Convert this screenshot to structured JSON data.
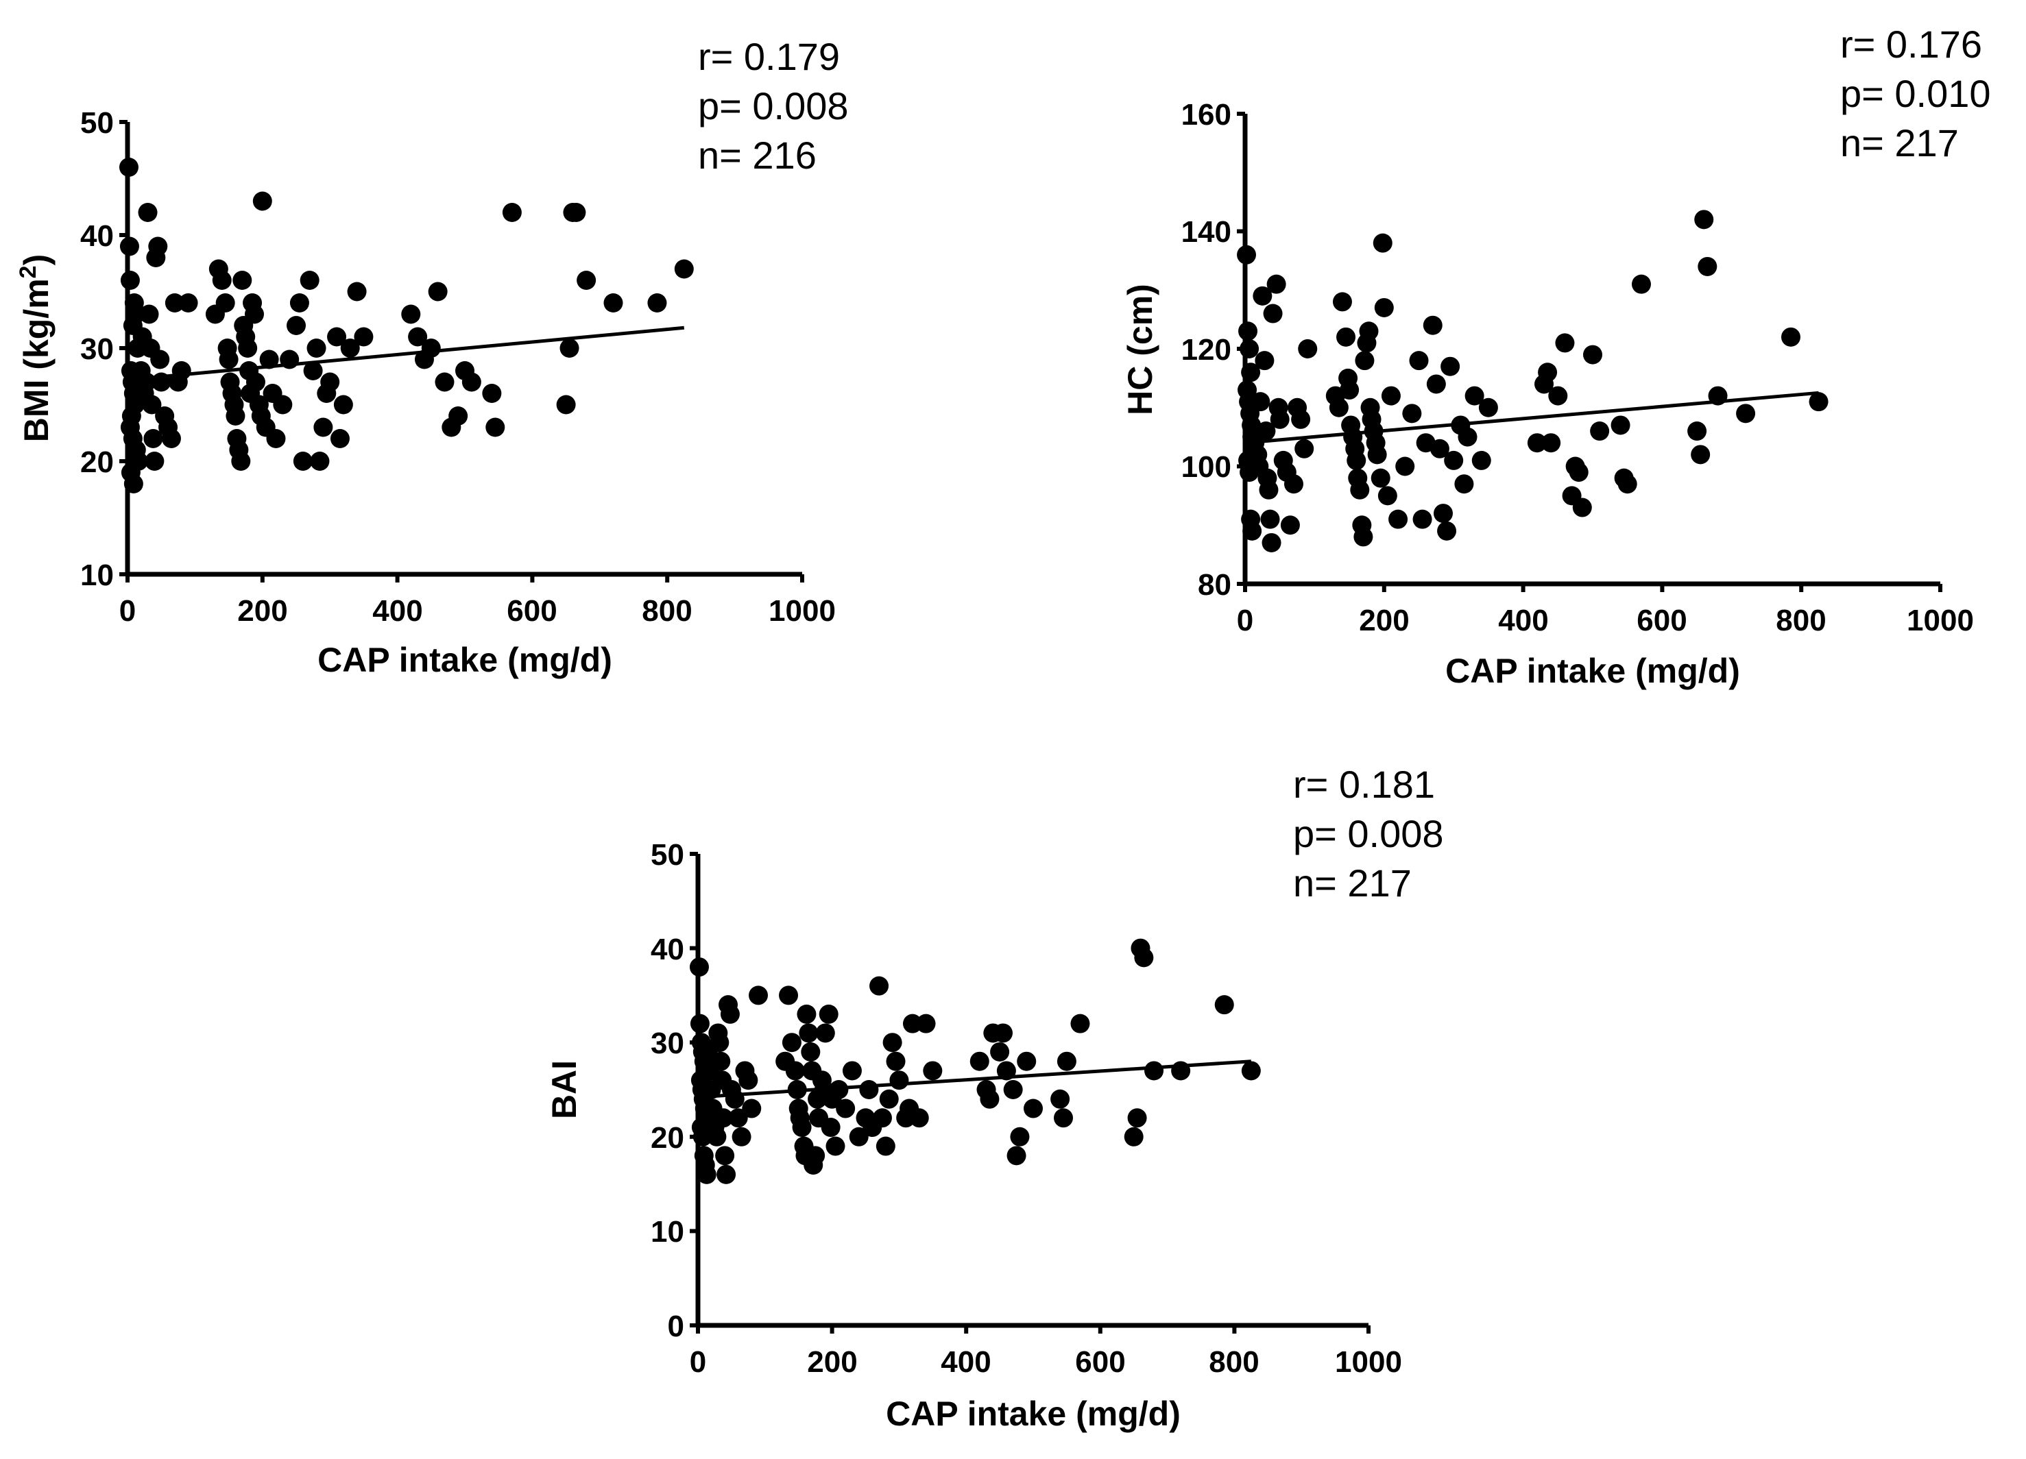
{
  "chart_data": [
    {
      "type": "scatter",
      "id": "bmi",
      "xlabel": "CAP intake (mg/d)",
      "ylabel": "BMI (kg/m",
      "ylabel_sup": "2",
      "ylabel_end": ")",
      "xlim": [
        0,
        1000
      ],
      "ylim": [
        10,
        50
      ],
      "xticks": [
        "0",
        "200",
        "400",
        "600",
        "800",
        "1000"
      ],
      "yticks": [
        "10",
        "20",
        "30",
        "40",
        "50"
      ],
      "stats": {
        "r": "r= 0.179",
        "p": "p= 0.008",
        "n": "n= 216"
      },
      "trend": {
        "x": [
          0,
          825
        ],
        "y": [
          27.2,
          31.8
        ]
      },
      "points": [
        [
          2,
          46
        ],
        [
          3,
          39
        ],
        [
          4,
          36
        ],
        [
          8,
          32
        ],
        [
          10,
          34
        ],
        [
          12,
          33
        ],
        [
          15,
          30
        ],
        [
          5,
          28
        ],
        [
          7,
          27
        ],
        [
          9,
          26
        ],
        [
          11,
          25
        ],
        [
          6,
          24
        ],
        [
          4,
          23
        ],
        [
          8,
          22
        ],
        [
          5,
          19
        ],
        [
          9,
          18
        ],
        [
          13,
          21
        ],
        [
          16,
          20
        ],
        [
          20,
          28
        ],
        [
          22,
          31
        ],
        [
          25,
          26
        ],
        [
          28,
          27
        ],
        [
          30,
          42
        ],
        [
          32,
          33
        ],
        [
          34,
          30
        ],
        [
          36,
          25
        ],
        [
          38,
          22
        ],
        [
          40,
          20
        ],
        [
          42,
          38
        ],
        [
          45,
          39
        ],
        [
          48,
          29
        ],
        [
          50,
          27
        ],
        [
          55,
          24
        ],
        [
          60,
          23
        ],
        [
          65,
          22
        ],
        [
          70,
          34
        ],
        [
          75,
          27
        ],
        [
          80,
          28
        ],
        [
          90,
          34
        ],
        [
          130,
          33
        ],
        [
          135,
          37
        ],
        [
          140,
          36
        ],
        [
          145,
          34
        ],
        [
          148,
          30
        ],
        [
          150,
          29
        ],
        [
          152,
          27
        ],
        [
          155,
          26
        ],
        [
          158,
          25
        ],
        [
          160,
          24
        ],
        [
          162,
          22
        ],
        [
          165,
          21
        ],
        [
          168,
          20
        ],
        [
          170,
          36
        ],
        [
          172,
          32
        ],
        [
          175,
          31
        ],
        [
          178,
          30
        ],
        [
          180,
          28
        ],
        [
          182,
          26
        ],
        [
          185,
          34
        ],
        [
          188,
          33
        ],
        [
          190,
          27
        ],
        [
          195,
          25
        ],
        [
          198,
          24
        ],
        [
          200,
          43
        ],
        [
          205,
          23
        ],
        [
          210,
          29
        ],
        [
          215,
          26
        ],
        [
          220,
          22
        ],
        [
          230,
          25
        ],
        [
          240,
          29
        ],
        [
          250,
          32
        ],
        [
          255,
          34
        ],
        [
          260,
          20
        ],
        [
          270,
          36
        ],
        [
          275,
          28
        ],
        [
          280,
          30
        ],
        [
          285,
          20
        ],
        [
          290,
          23
        ],
        [
          295,
          26
        ],
        [
          300,
          27
        ],
        [
          310,
          31
        ],
        [
          315,
          22
        ],
        [
          320,
          25
        ],
        [
          330,
          30
        ],
        [
          340,
          35
        ],
        [
          350,
          31
        ],
        [
          420,
          33
        ],
        [
          430,
          31
        ],
        [
          440,
          29
        ],
        [
          450,
          30
        ],
        [
          460,
          35
        ],
        [
          470,
          27
        ],
        [
          480,
          23
        ],
        [
          490,
          24
        ],
        [
          500,
          28
        ],
        [
          510,
          27
        ],
        [
          540,
          26
        ],
        [
          545,
          23
        ],
        [
          570,
          42
        ],
        [
          650,
          25
        ],
        [
          655,
          30
        ],
        [
          660,
          42
        ],
        [
          665,
          42
        ],
        [
          680,
          36
        ],
        [
          720,
          34
        ],
        [
          785,
          34
        ],
        [
          825,
          37
        ]
      ]
    },
    {
      "type": "scatter",
      "id": "hc",
      "xlabel": "CAP intake (mg/d)",
      "ylabel": "HC (cm)",
      "xlim": [
        0,
        1000
      ],
      "ylim": [
        80,
        160
      ],
      "xticks": [
        "0",
        "200",
        "400",
        "600",
        "800",
        "1000"
      ],
      "yticks": [
        "80",
        "100",
        "120",
        "140",
        "160"
      ],
      "stats": {
        "r": "r= 0.176",
        "p": "p= 0.010",
        "n": "n= 217"
      },
      "trend": {
        "x": [
          0,
          825
        ],
        "y": [
          104,
          112.5
        ]
      },
      "points": [
        [
          2,
          136
        ],
        [
          4,
          123
        ],
        [
          6,
          120
        ],
        [
          8,
          116
        ],
        [
          3,
          113
        ],
        [
          5,
          111
        ],
        [
          7,
          109
        ],
        [
          9,
          107
        ],
        [
          10,
          105
        ],
        [
          12,
          103
        ],
        [
          4,
          101
        ],
        [
          6,
          99
        ],
        [
          8,
          91
        ],
        [
          10,
          89
        ],
        [
          14,
          104
        ],
        [
          18,
          102
        ],
        [
          20,
          100
        ],
        [
          22,
          111
        ],
        [
          25,
          129
        ],
        [
          28,
          118
        ],
        [
          30,
          106
        ],
        [
          32,
          98
        ],
        [
          34,
          96
        ],
        [
          36,
          91
        ],
        [
          38,
          87
        ],
        [
          40,
          126
        ],
        [
          45,
          131
        ],
        [
          48,
          110
        ],
        [
          50,
          108
        ],
        [
          55,
          101
        ],
        [
          60,
          99
        ],
        [
          65,
          90
        ],
        [
          70,
          97
        ],
        [
          75,
          110
        ],
        [
          80,
          108
        ],
        [
          85,
          103
        ],
        [
          90,
          120
        ],
        [
          130,
          112
        ],
        [
          135,
          110
        ],
        [
          140,
          128
        ],
        [
          145,
          122
        ],
        [
          148,
          115
        ],
        [
          150,
          113
        ],
        [
          152,
          107
        ],
        [
          155,
          105
        ],
        [
          158,
          103
        ],
        [
          160,
          101
        ],
        [
          162,
          98
        ],
        [
          165,
          96
        ],
        [
          168,
          90
        ],
        [
          170,
          88
        ],
        [
          172,
          118
        ],
        [
          175,
          121
        ],
        [
          178,
          123
        ],
        [
          180,
          110
        ],
        [
          182,
          108
        ],
        [
          185,
          106
        ],
        [
          188,
          104
        ],
        [
          190,
          102
        ],
        [
          195,
          98
        ],
        [
          198,
          138
        ],
        [
          200,
          127
        ],
        [
          205,
          95
        ],
        [
          210,
          112
        ],
        [
          220,
          91
        ],
        [
          230,
          100
        ],
        [
          240,
          109
        ],
        [
          250,
          118
        ],
        [
          255,
          91
        ],
        [
          260,
          104
        ],
        [
          270,
          124
        ],
        [
          275,
          114
        ],
        [
          280,
          103
        ],
        [
          285,
          92
        ],
        [
          290,
          89
        ],
        [
          295,
          117
        ],
        [
          300,
          101
        ],
        [
          310,
          107
        ],
        [
          315,
          97
        ],
        [
          320,
          105
        ],
        [
          330,
          112
        ],
        [
          340,
          101
        ],
        [
          350,
          110
        ],
        [
          420,
          104
        ],
        [
          430,
          114
        ],
        [
          435,
          116
        ],
        [
          440,
          104
        ],
        [
          450,
          112
        ],
        [
          460,
          121
        ],
        [
          470,
          95
        ],
        [
          475,
          100
        ],
        [
          480,
          99
        ],
        [
          485,
          93
        ],
        [
          500,
          119
        ],
        [
          510,
          106
        ],
        [
          540,
          107
        ],
        [
          545,
          98
        ],
        [
          550,
          97
        ],
        [
          570,
          131
        ],
        [
          650,
          106
        ],
        [
          655,
          102
        ],
        [
          660,
          142
        ],
        [
          665,
          134
        ],
        [
          680,
          112
        ],
        [
          720,
          109
        ],
        [
          785,
          122
        ],
        [
          825,
          111
        ]
      ]
    },
    {
      "type": "scatter",
      "id": "bai",
      "xlabel": "CAP intake (mg/d)",
      "ylabel": "BAI",
      "xlim": [
        0,
        1000
      ],
      "ylim": [
        0,
        50
      ],
      "xticks": [
        "0",
        "200",
        "400",
        "600",
        "800",
        "1000"
      ],
      "yticks": [
        "0",
        "10",
        "20",
        "30",
        "40",
        "50"
      ],
      "stats": {
        "r": "r= 0.181",
        "p": "p= 0.008",
        "n": "n= 217"
      },
      "trend": {
        "x": [
          0,
          825
        ],
        "y": [
          24.2,
          28
        ]
      },
      "points": [
        [
          2,
          38
        ],
        [
          3,
          32
        ],
        [
          5,
          30
        ],
        [
          7,
          29
        ],
        [
          9,
          28
        ],
        [
          11,
          27
        ],
        [
          4,
          26
        ],
        [
          6,
          25
        ],
        [
          8,
          24
        ],
        [
          10,
          23
        ],
        [
          12,
          22
        ],
        [
          5,
          21
        ],
        [
          7,
          20
        ],
        [
          9,
          18
        ],
        [
          11,
          17
        ],
        [
          13,
          16
        ],
        [
          15,
          29
        ],
        [
          18,
          27
        ],
        [
          20,
          25
        ],
        [
          22,
          23
        ],
        [
          25,
          21
        ],
        [
          28,
          20
        ],
        [
          30,
          31
        ],
        [
          32,
          30
        ],
        [
          34,
          28
        ],
        [
          36,
          26
        ],
        [
          38,
          22
        ],
        [
          40,
          18
        ],
        [
          42,
          16
        ],
        [
          45,
          34
        ],
        [
          48,
          33
        ],
        [
          50,
          25
        ],
        [
          55,
          24
        ],
        [
          60,
          22
        ],
        [
          65,
          20
        ],
        [
          70,
          27
        ],
        [
          75,
          26
        ],
        [
          80,
          23
        ],
        [
          90,
          35
        ],
        [
          130,
          28
        ],
        [
          135,
          35
        ],
        [
          140,
          30
        ],
        [
          145,
          27
        ],
        [
          148,
          25
        ],
        [
          150,
          23
        ],
        [
          152,
          22
        ],
        [
          155,
          21
        ],
        [
          158,
          19
        ],
        [
          160,
          18
        ],
        [
          162,
          33
        ],
        [
          165,
          31
        ],
        [
          168,
          29
        ],
        [
          170,
          27
        ],
        [
          172,
          17
        ],
        [
          175,
          18
        ],
        [
          178,
          24
        ],
        [
          180,
          22
        ],
        [
          185,
          26
        ],
        [
          188,
          25
        ],
        [
          190,
          31
        ],
        [
          195,
          33
        ],
        [
          198,
          21
        ],
        [
          200,
          24
        ],
        [
          205,
          19
        ],
        [
          210,
          25
        ],
        [
          220,
          23
        ],
        [
          230,
          27
        ],
        [
          240,
          20
        ],
        [
          250,
          22
        ],
        [
          255,
          25
        ],
        [
          260,
          21
        ],
        [
          270,
          36
        ],
        [
          275,
          22
        ],
        [
          280,
          19
        ],
        [
          285,
          24
        ],
        [
          290,
          30
        ],
        [
          295,
          28
        ],
        [
          300,
          26
        ],
        [
          310,
          22
        ],
        [
          315,
          23
        ],
        [
          320,
          32
        ],
        [
          330,
          22
        ],
        [
          340,
          32
        ],
        [
          350,
          27
        ],
        [
          420,
          28
        ],
        [
          430,
          25
        ],
        [
          435,
          24
        ],
        [
          440,
          31
        ],
        [
          450,
          29
        ],
        [
          455,
          31
        ],
        [
          460,
          27
        ],
        [
          470,
          25
        ],
        [
          475,
          18
        ],
        [
          480,
          20
        ],
        [
          490,
          28
        ],
        [
          500,
          23
        ],
        [
          540,
          24
        ],
        [
          545,
          22
        ],
        [
          550,
          28
        ],
        [
          570,
          32
        ],
        [
          650,
          20
        ],
        [
          655,
          22
        ],
        [
          660,
          40
        ],
        [
          665,
          39
        ],
        [
          680,
          27
        ],
        [
          720,
          27
        ],
        [
          785,
          34
        ],
        [
          825,
          27
        ]
      ]
    }
  ]
}
